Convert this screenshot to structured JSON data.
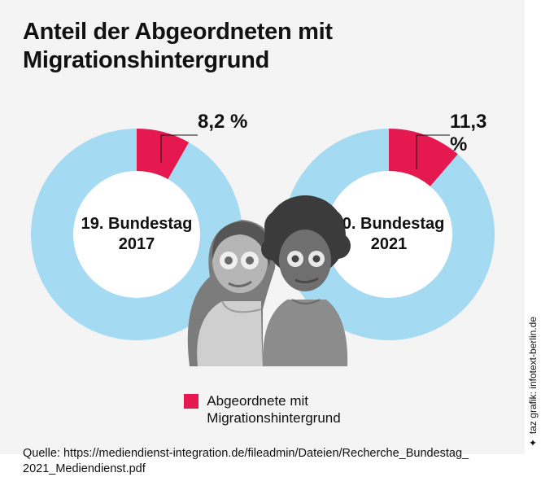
{
  "title_line1": "Anteil der Abgeordneten mit",
  "title_line2": "Migrationshintergrund",
  "charts": {
    "type": "donut",
    "ring_color": "#a4daf2",
    "slice_color": "#e5184f",
    "inner_bg": "#ffffff",
    "outer_radius": 130,
    "inner_radius": 78,
    "left": {
      "percent": 8.2,
      "percent_label": "8,2 %",
      "center_label_line1": "19. Bundestag",
      "center_label_line2": "2017"
    },
    "right": {
      "percent": 11.3,
      "percent_label": "11,3 %",
      "center_label_line1": "20. Bundestag",
      "center_label_line2": "2021"
    }
  },
  "legend": {
    "swatch_color": "#e5184f",
    "text_line1": "Abgeordnete mit",
    "text_line2": "Migrationshintergrund"
  },
  "source_line1": "Quelle: https://mediendienst-integration.de/fileadmin/Dateien/Recherche_Bundestag_",
  "source_line2": "2021_Mediendienst.pdf",
  "credit": "✦ taz grafik: infotext-berlin.de",
  "colors": {
    "panel_bg": "#f4f4f4",
    "page_bg": "#ffffff",
    "text": "#111111"
  }
}
